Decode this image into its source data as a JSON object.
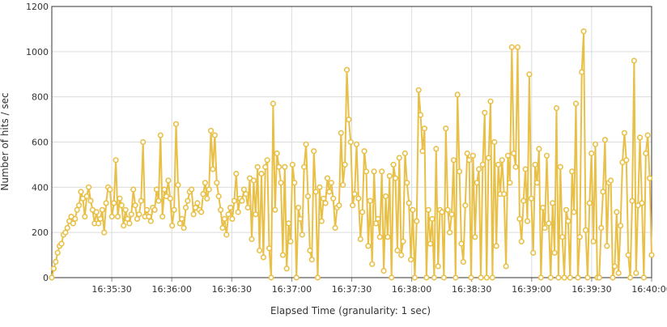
{
  "chart_data": {
    "type": "line",
    "xlabel": "Elapsed Time (granularity: 1 sec)",
    "ylabel": "Number of hits / sec",
    "ylim": [
      0,
      1200
    ],
    "yticks": [
      0,
      200,
      400,
      600,
      800,
      1000,
      1200
    ],
    "xticks": [
      {
        "t": 90,
        "label": "16:35:30"
      },
      {
        "t": 120,
        "label": "16:36:00"
      },
      {
        "t": 150,
        "label": "16:36:30"
      },
      {
        "t": 180,
        "label": "16:37:00"
      },
      {
        "t": 210,
        "label": "16:37:30"
      },
      {
        "t": 240,
        "label": "16:38:00"
      },
      {
        "t": 270,
        "label": "16:38:30"
      },
      {
        "t": 300,
        "label": "16:39:00"
      },
      {
        "t": 330,
        "label": "16:39:30"
      },
      {
        "t": 360,
        "label": "16:40:00"
      }
    ],
    "xlim_seconds": [
      60,
      360
    ],
    "grid": true,
    "series_color": "#e8c048",
    "series": [
      {
        "name": "",
        "values": [
          0,
          40,
          70,
          110,
          140,
          150,
          190,
          200,
          220,
          250,
          270,
          240,
          260,
          300,
          320,
          380,
          350,
          270,
          360,
          400,
          340,
          300,
          240,
          290,
          240,
          260,
          300,
          200,
          330,
          400,
          390,
          270,
          330,
          520,
          270,
          350,
          320,
          230,
          300,
          260,
          240,
          280,
          390,
          320,
          260,
          280,
          340,
          600,
          270,
          300,
          270,
          250,
          310,
          300,
          390,
          340,
          630,
          270,
          390,
          360,
          430,
          350,
          230,
          300,
          680,
          410,
          240,
          260,
          220,
          310,
          340,
          380,
          390,
          280,
          310,
          330,
          300,
          290,
          370,
          420,
          350,
          390,
          650,
          480,
          630,
          420,
          360,
          300,
          220,
          260,
          190,
          280,
          310,
          260,
          340,
          460,
          290,
          350,
          340,
          390,
          370,
          310,
          440,
          170,
          430,
          280,
          490,
          120,
          460,
          90,
          490,
          520,
          130,
          0,
          770,
          300,
          550,
          490,
          420,
          100,
          490,
          40,
          240,
          160,
          500,
          420,
          0,
          310,
          260,
          190,
          490,
          590,
          360,
          120,
          80,
          560,
          380,
          0,
          400,
          250,
          350,
          330,
          440,
          380,
          420,
          350,
          220,
          310,
          320,
          640,
          410,
          500,
          920,
          700,
          600,
          320,
          370,
          590,
          350,
          170,
          290,
          560,
          470,
          140,
          340,
          60,
          470,
          240,
          260,
          180,
          470,
          30,
          360,
          180,
          450,
          0,
          500,
          440,
          120,
          530,
          100,
          160,
          550,
          420,
          330,
          80,
          300,
          0,
          250,
          830,
          720,
          560,
          660,
          0,
          300,
          150,
          260,
          0,
          570,
          50,
          300,
          290,
          0,
          660,
          300,
          200,
          280,
          520,
          0,
          810,
          470,
          150,
          70,
          320,
          550,
          520,
          0,
          540,
          180,
          420,
          480,
          0,
          500,
          730,
          0,
          530,
          780,
          0,
          600,
          140,
          500,
          370,
          520,
          370,
          50,
          540,
          420,
          1020,
          550,
          490,
          1020,
          260,
          160,
          340,
          480,
          250,
          900,
          350,
          110,
          500,
          420,
          570,
          0,
          310,
          220,
          540,
          240,
          0,
          330,
          110,
          750,
          0,
          490,
          180,
          0,
          300,
          250,
          0,
          470,
          290,
          770,
          0,
          180,
          910,
          1090,
          210,
          0,
          330,
          550,
          160,
          590,
          0,
          0,
          220,
          380,
          610,
          140,
          420,
          430,
          0,
          50,
          290,
          20,
          230,
          510,
          640,
          520,
          100,
          0,
          340,
          960,
          20,
          320,
          620,
          330,
          0,
          550,
          630,
          440,
          100
        ]
      }
    ]
  }
}
